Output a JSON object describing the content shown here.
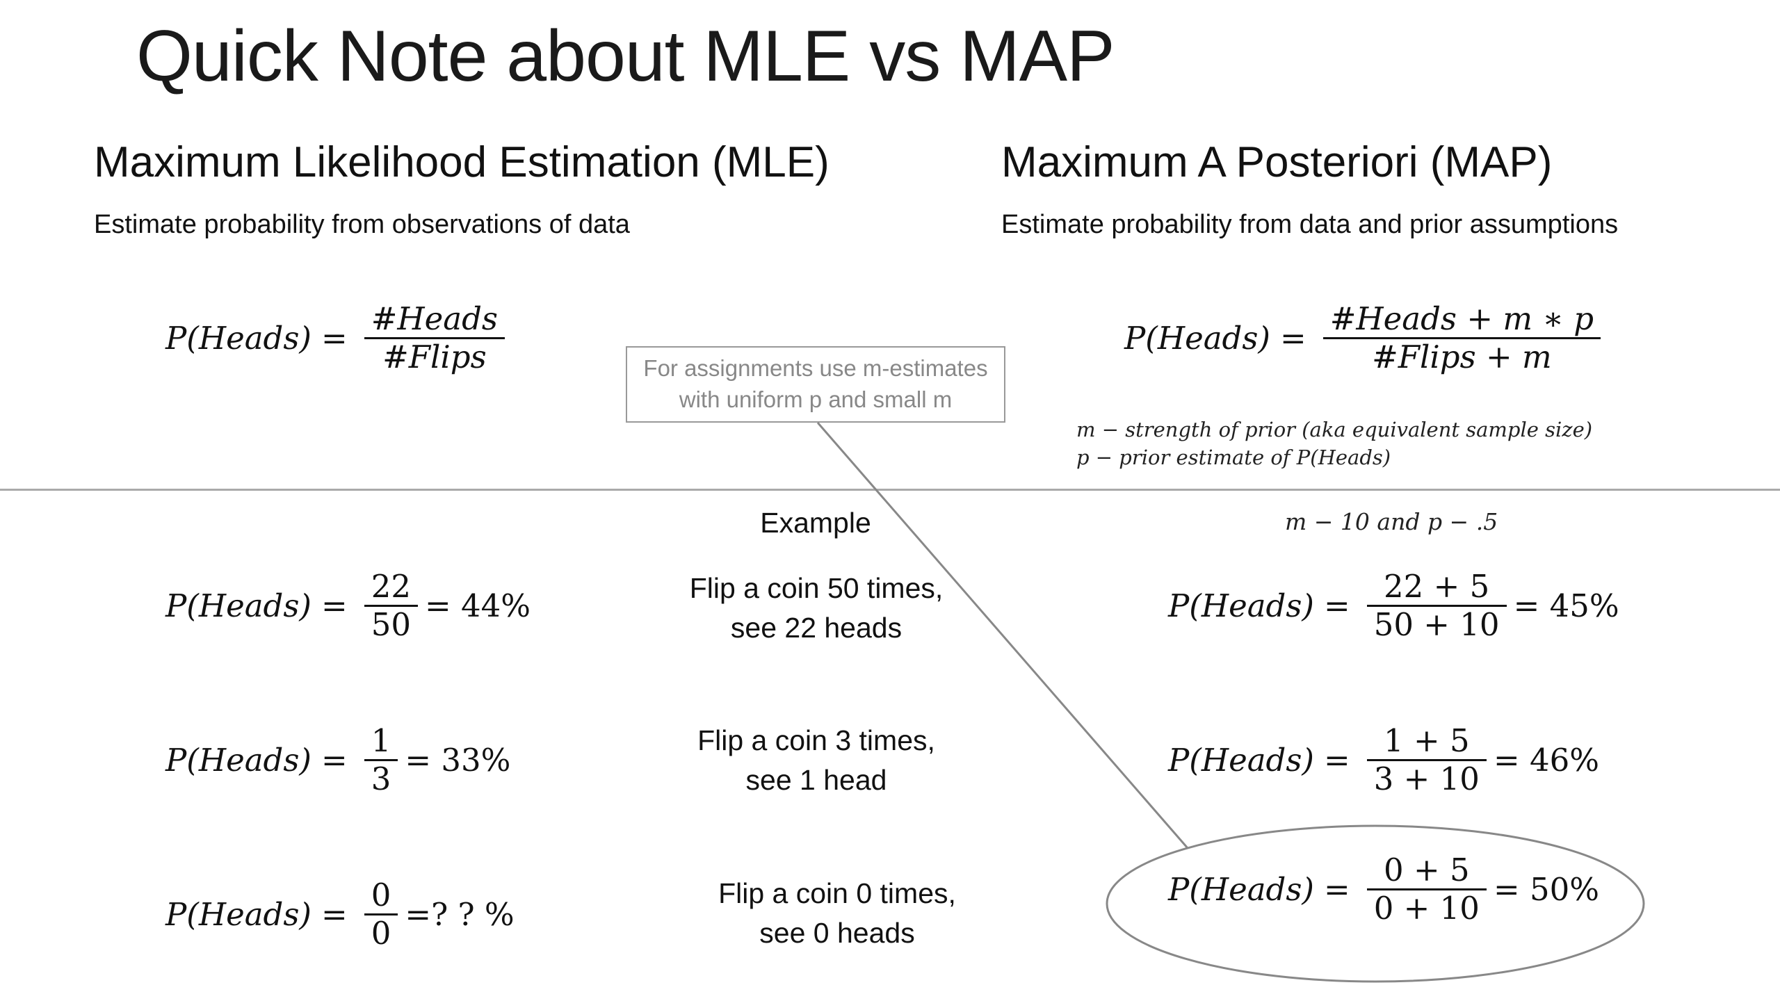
{
  "title": "Quick Note about MLE vs MAP",
  "mle": {
    "heading": "Maximum Likelihood Estimation (MLE)",
    "subtitle": "Estimate probability from observations of data",
    "formula": {
      "lhs": "P(Heads)",
      "eq": "=",
      "num": "#Heads",
      "den": "#Flips"
    }
  },
  "map": {
    "heading": "Maximum A Posteriori (MAP)",
    "subtitle": "Estimate probability from data and prior assumptions",
    "formula": {
      "lhs": "P(Heads)",
      "eq": "=",
      "num": "#Heads + m ∗ p",
      "den": "#Flips + m"
    },
    "def_m": "m  − strength of prior (aka equivalent sample size)",
    "def_p": "p  − prior estimate of P(Heads)"
  },
  "note": "For assignments use m-estimates with uniform p and small m",
  "example": {
    "label": "Example",
    "params": "m  − 10 and p  − .5",
    "rows": [
      {
        "scenario_line1": "Flip a coin 50 times,",
        "scenario_line2": "see 22 heads",
        "mle": {
          "lhs": "P(Heads)",
          "eq": "=",
          "num": "22",
          "den": "50",
          "result": "= 44%"
        },
        "map": {
          "lhs": "P(Heads)",
          "eq": "=",
          "num": "22 + 5",
          "den": "50 + 10",
          "result": "= 45%"
        }
      },
      {
        "scenario_line1": "Flip a coin 3 times,",
        "scenario_line2": "see 1 head",
        "mle": {
          "lhs": "P(Heads)",
          "eq": "=",
          "num": "1",
          "den": "3",
          "result": "= 33%"
        },
        "map": {
          "lhs": "P(Heads)",
          "eq": "=",
          "num": "1 + 5",
          "den": "3 + 10",
          "result": "= 46%"
        }
      },
      {
        "scenario_line1": "Flip a coin 0 times,",
        "scenario_line2": "see 0 heads",
        "mle": {
          "lhs": "P(Heads)",
          "eq": "=",
          "num": "0",
          "den": "0",
          "result": "=? ? %"
        },
        "map": {
          "lhs": "P(Heads)",
          "eq": "=",
          "num": "0 + 5",
          "den": "0 + 10",
          "result": "= 50%"
        }
      }
    ]
  },
  "colors": {
    "text": "#111111",
    "note_border": "#999999",
    "note_text": "#888888",
    "divider": "#aaaaaa",
    "annotation": "#888888"
  }
}
